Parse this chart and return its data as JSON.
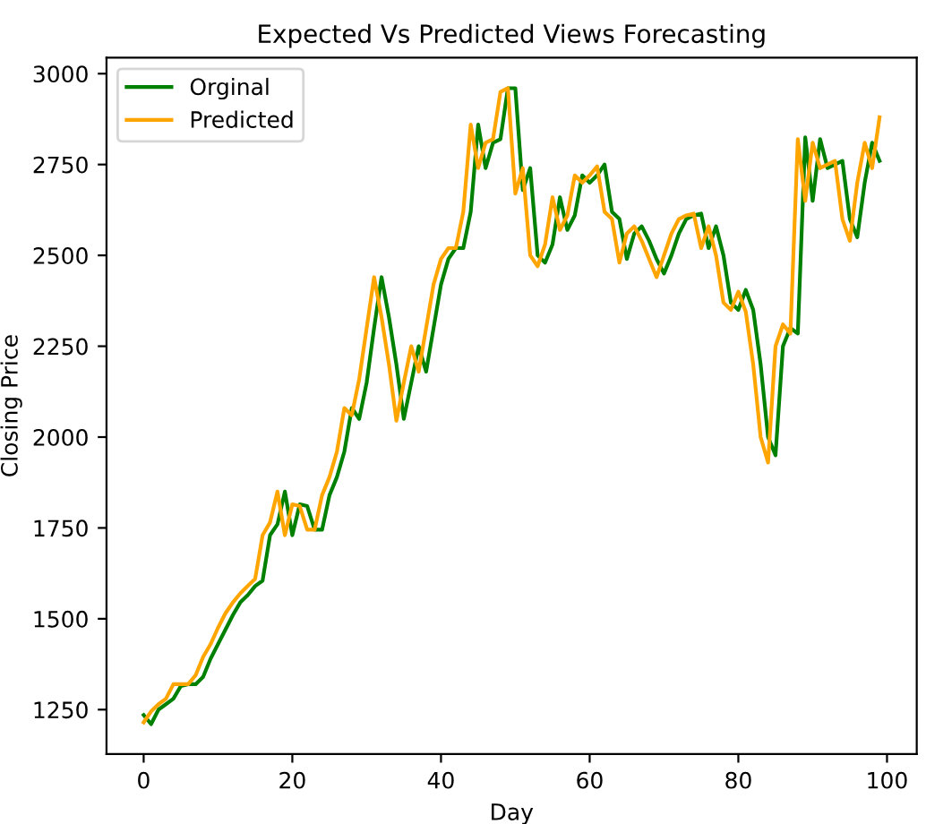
{
  "chart_data": {
    "type": "line",
    "title": "Expected Vs Predicted Views Forecasting",
    "xlabel": "Day",
    "ylabel": "Closing Price",
    "x": [
      0,
      1,
      2,
      3,
      4,
      5,
      6,
      7,
      8,
      9,
      10,
      11,
      12,
      13,
      14,
      15,
      16,
      17,
      18,
      19,
      20,
      21,
      22,
      23,
      24,
      25,
      26,
      27,
      28,
      29,
      30,
      31,
      32,
      33,
      34,
      35,
      36,
      37,
      38,
      39,
      40,
      41,
      42,
      43,
      44,
      45,
      46,
      47,
      48,
      49,
      50,
      51,
      52,
      53,
      54,
      55,
      56,
      57,
      58,
      59,
      60,
      61,
      62,
      63,
      64,
      65,
      66,
      67,
      68,
      69,
      70,
      71,
      72,
      73,
      74,
      75,
      76,
      77,
      78,
      79,
      80,
      81,
      82,
      83,
      84,
      85,
      86,
      87,
      88,
      89,
      90,
      91,
      92,
      93,
      94,
      95,
      96,
      97,
      98,
      99
    ],
    "series": [
      {
        "name": "Orginal",
        "color": "#008000",
        "values": [
          1235,
          1210,
          1250,
          1265,
          1280,
          1315,
          1320,
          1320,
          1340,
          1390,
          1430,
          1470,
          1510,
          1545,
          1565,
          1590,
          1605,
          1730,
          1760,
          1850,
          1730,
          1815,
          1810,
          1745,
          1745,
          1840,
          1890,
          1960,
          2080,
          2050,
          2150,
          2300,
          2440,
          2330,
          2200,
          2050,
          2150,
          2250,
          2180,
          2300,
          2420,
          2490,
          2520,
          2520,
          2620,
          2860,
          2740,
          2810,
          2820,
          2960,
          2960,
          2680,
          2740,
          2500,
          2480,
          2530,
          2660,
          2570,
          2610,
          2720,
          2700,
          2720,
          2750,
          2620,
          2600,
          2490,
          2560,
          2580,
          2540,
          2490,
          2450,
          2500,
          2560,
          2600,
          2610,
          2615,
          2520,
          2580,
          2500,
          2370,
          2350,
          2405,
          2350,
          2200,
          2000,
          1950,
          2250,
          2300,
          2285,
          2825,
          2650,
          2820,
          2740,
          2750,
          2760,
          2600,
          2550,
          2700,
          2810,
          2760
        ]
      },
      {
        "name": "Predicted",
        "color": "#ffa500",
        "values": [
          1215,
          1245,
          1265,
          1280,
          1320,
          1320,
          1320,
          1345,
          1395,
          1430,
          1475,
          1515,
          1545,
          1570,
          1590,
          1610,
          1730,
          1765,
          1850,
          1730,
          1815,
          1810,
          1745,
          1745,
          1840,
          1890,
          1960,
          2080,
          2060,
          2160,
          2300,
          2440,
          2330,
          2200,
          2045,
          2150,
          2250,
          2180,
          2300,
          2420,
          2490,
          2520,
          2520,
          2620,
          2860,
          2740,
          2810,
          2820,
          2950,
          2960,
          2670,
          2740,
          2500,
          2470,
          2530,
          2660,
          2570,
          2610,
          2720,
          2700,
          2720,
          2745,
          2620,
          2600,
          2480,
          2560,
          2580,
          2540,
          2490,
          2440,
          2500,
          2560,
          2600,
          2610,
          2615,
          2520,
          2580,
          2500,
          2370,
          2350,
          2400,
          2345,
          2200,
          2000,
          1930,
          2250,
          2310,
          2285,
          2820,
          2650,
          2810,
          2740,
          2750,
          2760,
          2600,
          2540,
          2700,
          2810,
          2740,
          2880
        ]
      }
    ],
    "xlim": [
      -5,
      104
    ],
    "ylim": [
      1128,
      3044
    ],
    "xticks": [
      0,
      20,
      40,
      60,
      80,
      100
    ],
    "yticks": [
      1250,
      1500,
      1750,
      2000,
      2250,
      2500,
      2750,
      3000
    ],
    "legend": "top left",
    "grid": false
  }
}
